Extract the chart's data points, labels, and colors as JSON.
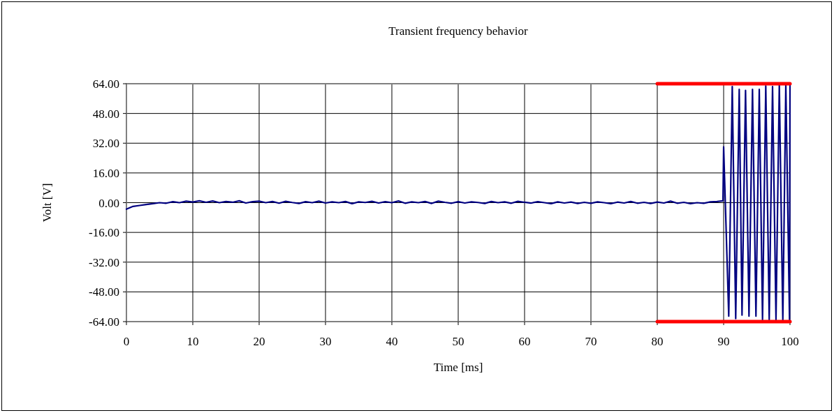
{
  "chart_data": {
    "type": "line",
    "title": "Transient frequency behavior",
    "xlabel": "Time [ms]",
    "ylabel": "Volt [V]",
    "xlim": [
      0,
      100
    ],
    "xticks": [
      0,
      10,
      20,
      30,
      40,
      50,
      60,
      70,
      80,
      90,
      100
    ],
    "ylim": [
      -64,
      64
    ],
    "yticks": [
      {
        "value": -64,
        "label": "-64.00"
      },
      {
        "value": -48,
        "label": "-48.00"
      },
      {
        "value": -32,
        "label": "-32.00"
      },
      {
        "value": -16,
        "label": "-16.00"
      },
      {
        "value": 0,
        "label": "0.00"
      },
      {
        "value": 16,
        "label": "16.00"
      },
      {
        "value": 32,
        "label": "32.00"
      },
      {
        "value": 48,
        "label": "48.00"
      },
      {
        "value": 64,
        "label": "64.00"
      }
    ],
    "grid": true,
    "series": [
      {
        "color": "#000080",
        "x": [
          0,
          1,
          2,
          3,
          4,
          5,
          6,
          7,
          8,
          9,
          10,
          11,
          12,
          13,
          14,
          15,
          16,
          17,
          18,
          19,
          20,
          21,
          22,
          23,
          24,
          25,
          26,
          27,
          28,
          29,
          30,
          31,
          32,
          33,
          34,
          35,
          36,
          37,
          38,
          39,
          40,
          41,
          42,
          43,
          44,
          45,
          46,
          47,
          48,
          49,
          50,
          51,
          52,
          53,
          54,
          55,
          56,
          57,
          58,
          59,
          60,
          61,
          62,
          63,
          64,
          65,
          66,
          67,
          68,
          69,
          70,
          71,
          72,
          73,
          74,
          75,
          76,
          77,
          78,
          79,
          80,
          81,
          82,
          83,
          84,
          85,
          86,
          87,
          88,
          89,
          89.9,
          90.0,
          90.77,
          91.3,
          91.82,
          92.35,
          92.77,
          93.3,
          93.82,
          94.35,
          94.87,
          95.37,
          95.86,
          96.35,
          96.87,
          97.37,
          97.89,
          98.39,
          98.92,
          99.37,
          99.93,
          100
        ],
        "values": [
          -3.5,
          -2,
          -1.5,
          -1,
          -0.5,
          0,
          -0.3,
          0.5,
          0,
          0.8,
          0.3,
          1,
          0.2,
          0.9,
          0,
          0.6,
          0.2,
          1,
          -0.2,
          0.5,
          0.8,
          0,
          0.6,
          -0.3,
          0.7,
          0.1,
          -0.4,
          0.5,
          0,
          0.8,
          -0.2,
          0.4,
          0,
          0.6,
          -0.5,
          0.4,
          0.1,
          0.7,
          -0.2,
          0.5,
          0,
          0.9,
          -0.3,
          0.4,
          0,
          0.6,
          -0.4,
          0.8,
          0.2,
          -0.3,
          0.5,
          -0.2,
          0.4,
          0.1,
          -0.4,
          0.6,
          0,
          0.4,
          -0.3,
          0.7,
          0.2,
          -0.2,
          0.5,
          0,
          -0.5,
          0.4,
          -0.2,
          0.3,
          -0.4,
          0.2,
          -0.3,
          0.4,
          0,
          -0.5,
          0.3,
          -0.2,
          0.6,
          -0.3,
          0.2,
          -0.4,
          0.3,
          -0.2,
          0.8,
          -0.3,
          0.2,
          -0.5,
          0,
          -0.3,
          0.4,
          0.6,
          1,
          30,
          -61.1,
          62.5,
          -62.4,
          61,
          -60.5,
          60.4,
          -61.1,
          61,
          -61.1,
          61,
          -63,
          62.8,
          -63,
          62.5,
          -63,
          63.4,
          -63.6,
          63.4,
          -63,
          64
        ]
      },
      {
        "color": "#ff0000",
        "x": [
          80,
          100
        ],
        "values": [
          64,
          64
        ]
      },
      {
        "color": "#ff0000",
        "x": [
          80,
          100
        ],
        "values": [
          -64,
          -64
        ]
      }
    ]
  }
}
